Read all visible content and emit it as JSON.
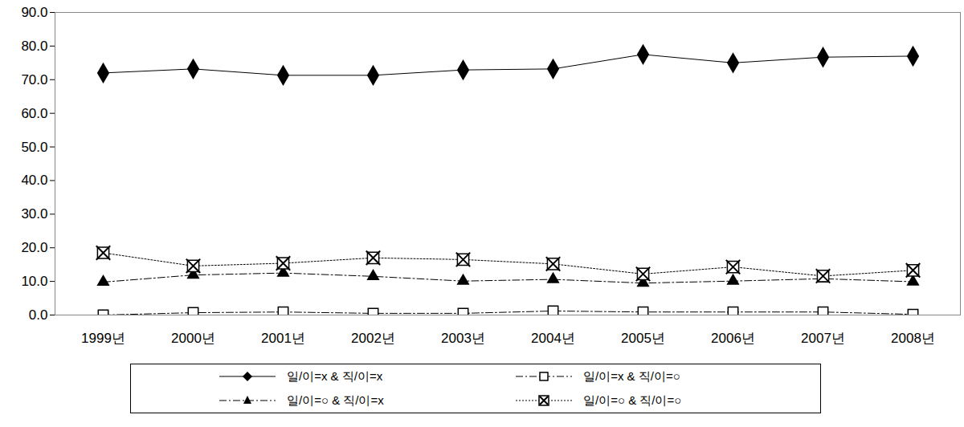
{
  "chart_data": {
    "type": "line",
    "categories": [
      "1999년",
      "2000년",
      "2001년",
      "2002년",
      "2003년",
      "2004년",
      "2005년",
      "2006년",
      "2007년",
      "2008년"
    ],
    "series": [
      {
        "name": "일/이=x  & 직/이=x",
        "color": "#000000",
        "marker": "diamond",
        "line_style": "solid",
        "values": [
          72.0,
          73.2,
          71.3,
          71.3,
          72.9,
          73.2,
          77.5,
          75.0,
          76.7,
          77.0
        ]
      },
      {
        "name": "일/이=x  & 직/이=○",
        "color": "#000000",
        "marker": "square_open",
        "line_style": "dashdot",
        "values": [
          0.0,
          0.7,
          0.9,
          0.5,
          0.5,
          1.2,
          0.9,
          0.9,
          0.9,
          0.2
        ]
      },
      {
        "name": "일/이=○ & 직/이=x",
        "color": "#000000",
        "marker": "triangle",
        "line_style": "dashdot",
        "values": [
          9.8,
          11.9,
          12.5,
          11.5,
          10.1,
          10.6,
          9.5,
          10.1,
          10.8,
          9.9
        ]
      },
      {
        "name": "일/이=○ & 직/이=○",
        "color": "#000000",
        "marker": "square_x",
        "line_style": "dotted",
        "values": [
          18.5,
          14.6,
          15.4,
          17.0,
          16.5,
          15.2,
          12.2,
          14.3,
          11.6,
          13.3
        ]
      }
    ],
    "ylim": [
      0,
      90
    ],
    "yticks": [
      {
        "value": 0,
        "label": "0.0"
      },
      {
        "value": 10,
        "label": "10.0"
      },
      {
        "value": 20,
        "label": "20.0"
      },
      {
        "value": 30,
        "label": "30.0"
      },
      {
        "value": 40,
        "label": "40.0"
      },
      {
        "value": 50,
        "label": "50.0"
      },
      {
        "value": 60,
        "label": "60.0"
      },
      {
        "value": 70,
        "label": "70.0"
      },
      {
        "value": 80,
        "label": "80.0"
      },
      {
        "value": 90,
        "label": "90.0"
      }
    ],
    "grid": false,
    "legend": "bottom"
  }
}
